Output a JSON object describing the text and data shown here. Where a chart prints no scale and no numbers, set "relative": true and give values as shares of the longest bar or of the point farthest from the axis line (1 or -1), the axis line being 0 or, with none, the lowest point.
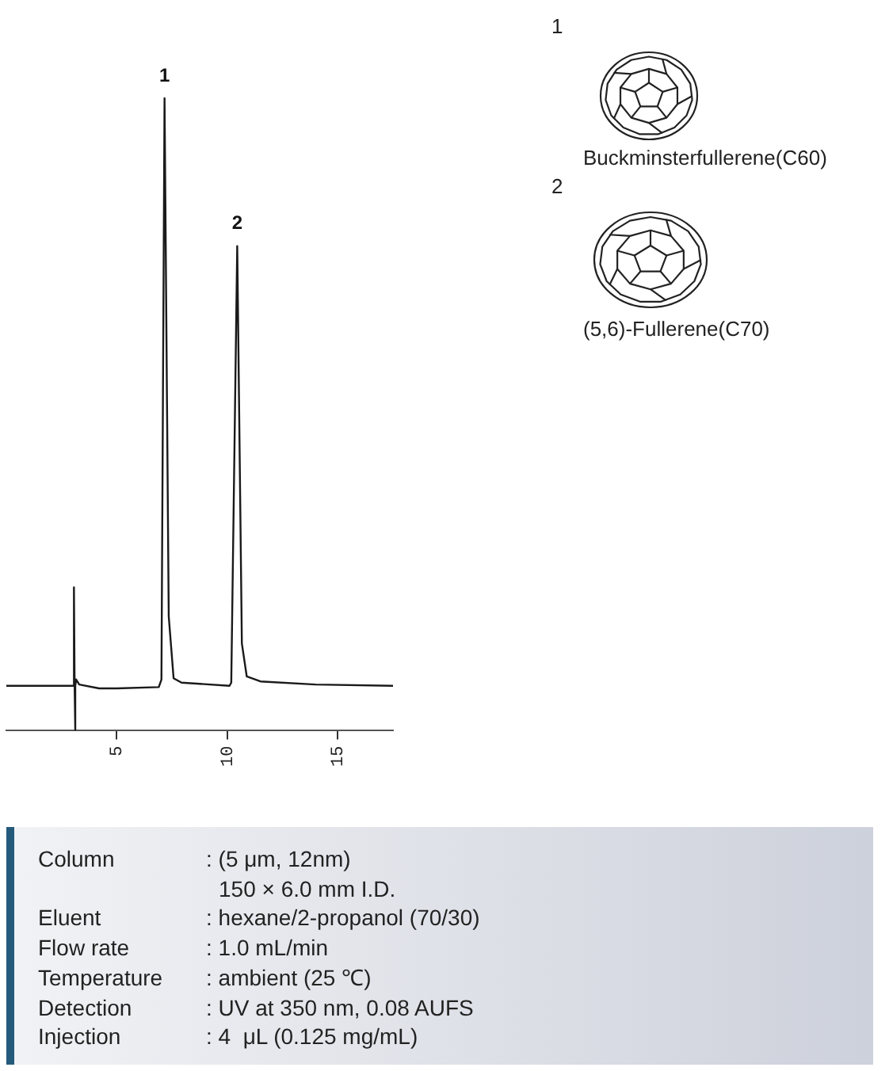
{
  "chart_data": {
    "type": "line",
    "x": [
      0,
      2.9,
      3.03,
      3.06,
      3.09,
      3.11,
      3.13,
      3.16,
      3.3,
      4.2,
      5.0,
      6.9,
      7.02,
      7.16,
      7.35,
      7.57,
      7.93,
      10.1,
      10.18,
      10.45,
      10.66,
      10.88,
      11.5,
      14.0,
      17.5
    ],
    "values": [
      0.07,
      0.07,
      0.07,
      0.226,
      0.07,
      0.0,
      0.07,
      0.08,
      0.072,
      0.066,
      0.066,
      0.068,
      0.08,
      1.0,
      0.18,
      0.082,
      0.075,
      0.07,
      0.075,
      0.766,
      0.137,
      0.085,
      0.077,
      0.072,
      0.07
    ],
    "color": "#1a1a1a",
    "relative": true,
    "xlim": [
      0,
      17.5
    ],
    "xticks": [
      5,
      10,
      15
    ],
    "annotations": [
      {
        "text": "1",
        "x": 7.16,
        "y": 1.0
      },
      {
        "text": "2",
        "x": 10.45,
        "y": 0.766
      },
      "1",
      "Buckminsterfullerene(C60)",
      "2",
      "(5,6)-Fullerene(C70)",
      "Column : (5 μm, 12nm)\n150 × 6.0 mm I.D.",
      "Eluent : hexane/2-propanol (70/30)",
      "Flow rate : 1.0 mL/min",
      "Temperature : ambient (25 ℃)",
      "Detection : UV at 350 nm, 0.08 AUFS",
      "Injection : 4  μL (0.125 mg/mL)"
    ]
  }
}
